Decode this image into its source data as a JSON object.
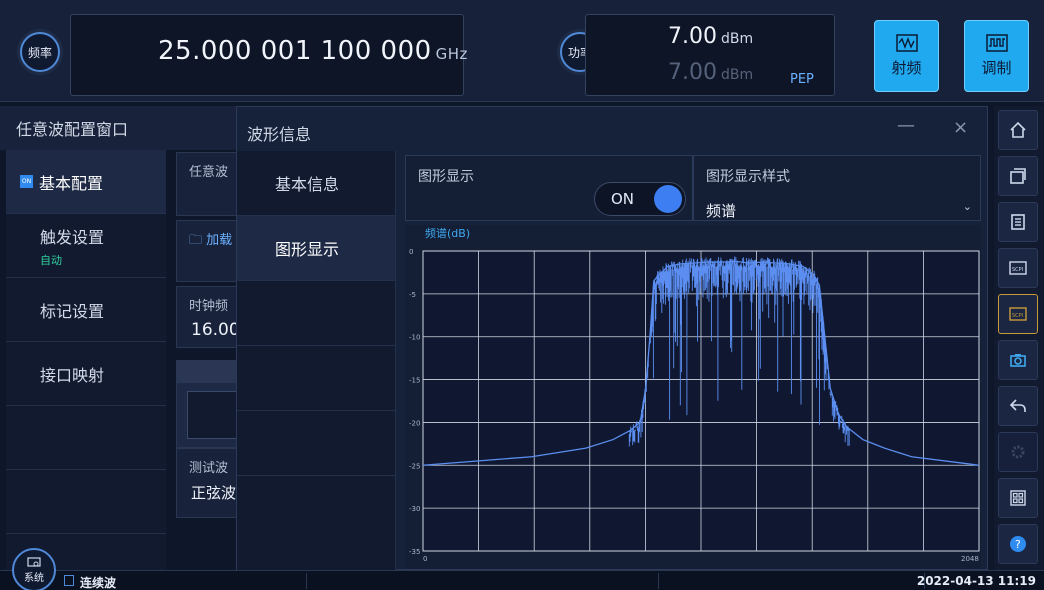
{
  "top": {
    "freq_button": "频率",
    "freq_value": "25.000 001 100 000",
    "freq_unit": "GHz",
    "power_button": "功率",
    "power_value": "7.00",
    "power_unit": "dBm",
    "power_pep_value": "7.00",
    "power_pep_unit": "dBm",
    "pep_label": "PEP",
    "rf_button": "射频",
    "mod_button": "调制"
  },
  "left_panel": {
    "title": "任意波配置窗口",
    "nav": [
      {
        "label": "基本配置",
        "active": true
      },
      {
        "label": "触发设置",
        "sub": "自动"
      },
      {
        "label": "标记设置"
      },
      {
        "label": "接口映射"
      }
    ],
    "content": {
      "arb_label": "任意波",
      "load_label": "加载",
      "clock_label": "时钟频",
      "clock_value": "16.00",
      "test_label": "测试波",
      "test_value": "正弦波"
    }
  },
  "dialog": {
    "title": "波形信息",
    "minimize": "—",
    "close": "×",
    "nav": [
      {
        "label": "基本信息"
      },
      {
        "label": "图形显示",
        "active": true
      }
    ],
    "graph_display_label": "图形显示",
    "graph_display_toggle": "ON",
    "graph_style_label": "图形显示样式",
    "graph_style_value": "频谱"
  },
  "chart_data": {
    "type": "line",
    "title": "频谱(dB)",
    "xlabel": "",
    "ylabel": "",
    "xlim": [
      0,
      2048
    ],
    "ylim": [
      -35,
      0
    ],
    "x_ticks": [
      "0",
      "2048"
    ],
    "y_ticks": [
      "0",
      "-5",
      "-10",
      "-15",
      "-20",
      "-25",
      "-30",
      "-35"
    ],
    "grid": true,
    "line_color": "#5b8ef0",
    "series": [
      {
        "x": [
          0,
          200,
          400,
          600,
          700,
          760,
          800,
          820,
          836,
          850,
          870,
          880,
          900,
          950,
          1000,
          1050,
          1100,
          1150,
          1200,
          1250,
          1300,
          1350,
          1400,
          1440,
          1460,
          1480,
          1500,
          1530,
          1560,
          1620,
          1700,
          1800,
          2000,
          2048
        ],
        "y": [
          -25,
          -24.5,
          -24,
          -23,
          -22,
          -21,
          -20,
          -16,
          -10,
          -3.5,
          -2.7,
          -2.5,
          -1.8,
          -1.5,
          -1.4,
          -1.3,
          -1.3,
          -1.2,
          -1.4,
          -1.3,
          -1.4,
          -1.5,
          -1.8,
          -2.8,
          -4,
          -10,
          -16,
          -19,
          -20.5,
          -22,
          -23,
          -24,
          -24.8,
          -25
        ]
      }
    ]
  },
  "status": {
    "system_button": "系统",
    "mode": "连续波",
    "datetime": "2022-04-13 11:19"
  },
  "colors": {
    "accent": "#21a9f0",
    "background": "#0e1629",
    "toggle_on": "#3d7ff2"
  }
}
